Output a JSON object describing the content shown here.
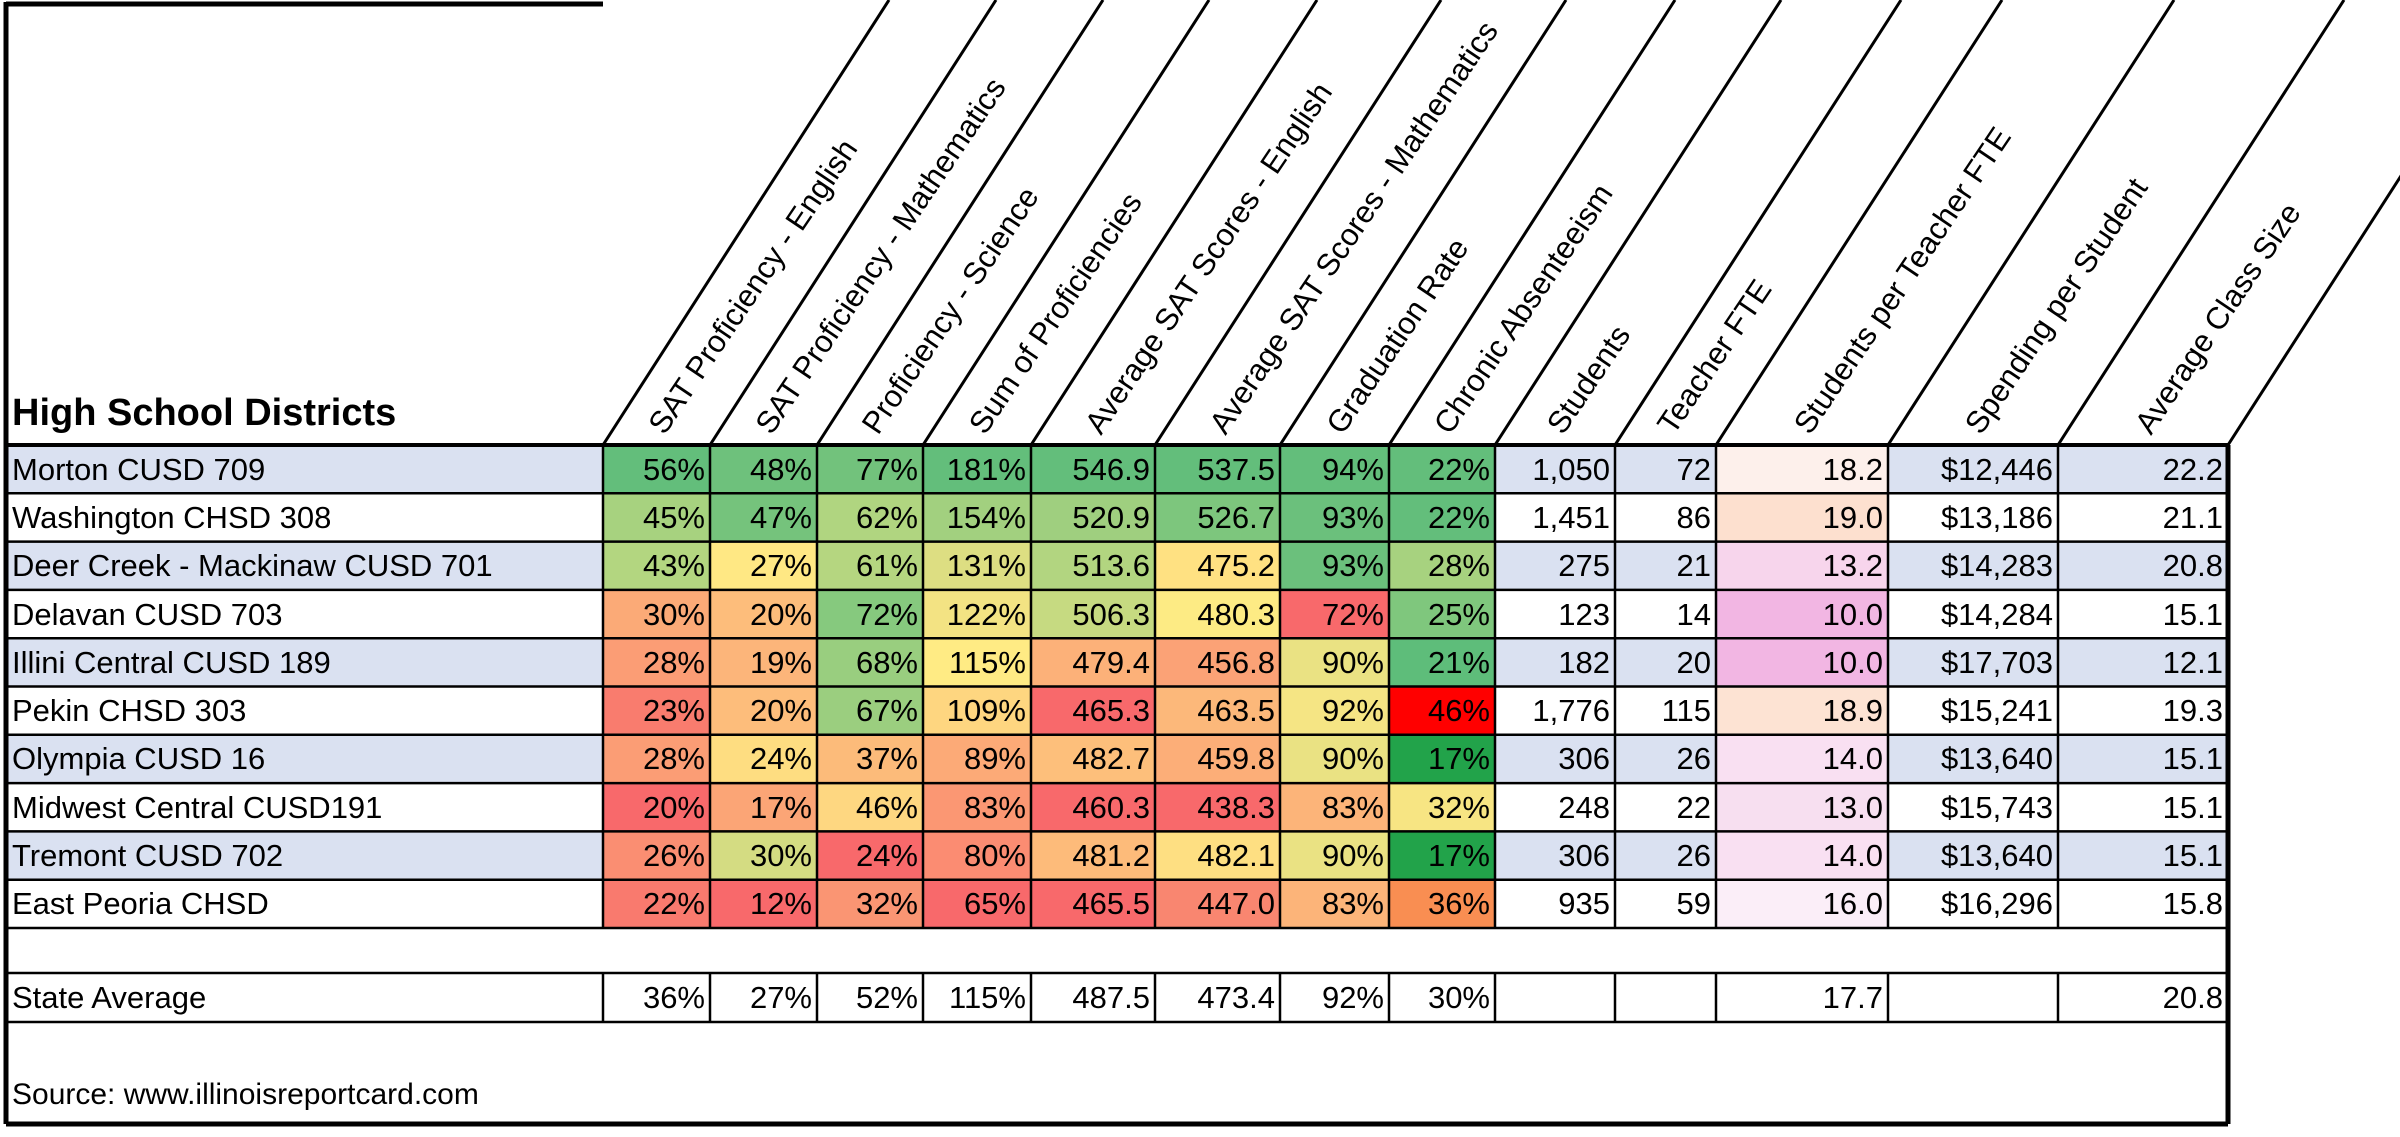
{
  "table": {
    "title": "High School Districts",
    "columns": [
      "SAT Proficiency - English",
      "SAT Proficiency - Mathematics",
      "Proficiency - Science",
      "Sum of Proficiencies",
      "Average SAT Scores - English",
      "Average SAT Scores - Mathematics",
      "Graduation Rate",
      "Chronic Absenteeism",
      "Students",
      "Teacher FTE",
      "Students per Teacher FTE",
      "Spending per Student",
      "Average Class Size"
    ],
    "rows": [
      {
        "name": "Morton CUSD 709",
        "cells": [
          "56%",
          "48%",
          "77%",
          "181%",
          "546.9",
          "537.5",
          "94%",
          "22%",
          "1,050",
          "72",
          "18.2",
          "$12,446",
          "22.2"
        ],
        "colors": [
          "#63be7b",
          "#6ec17c",
          "#72c27c",
          "#63be7b",
          "#63be7b",
          "#63be7b",
          "#63be7b",
          "#63be7b",
          "#dae1f1",
          "#dae1f1",
          "#fdf0eb",
          "#dae1f1",
          "#dae1f1"
        ]
      },
      {
        "name": "Washington CHSD 308",
        "cells": [
          "45%",
          "47%",
          "62%",
          "154%",
          "520.9",
          "526.7",
          "93%",
          "22%",
          "1,451",
          "86",
          "19.0",
          "$13,186",
          "21.1"
        ],
        "colors": [
          "#a7d27f",
          "#75c37c",
          "#b0d580",
          "#a2d07f",
          "#9fcf7f",
          "#7dc67d",
          "#6bc07c",
          "#63be7b",
          "#ffffff",
          "#ffffff",
          "#fde0cf",
          "#ffffff",
          "#ffffff"
        ]
      },
      {
        "name": "Deer Creek - Mackinaw CUSD 701",
        "cells": [
          "43%",
          "27%",
          "61%",
          "131%",
          "513.6",
          "475.2",
          "93%",
          "28%",
          "275",
          "21",
          "13.2",
          "$14,283",
          "20.8"
        ],
        "colors": [
          "#b3d680",
          "#ffe884",
          "#b5d680",
          "#ddde82",
          "#b2d580",
          "#ffe182",
          "#6bc07c",
          "#a7d27f",
          "#dae1f1",
          "#dae1f1",
          "#f7d5ec",
          "#dae1f1",
          "#dae1f1"
        ]
      },
      {
        "name": "Delavan CUSD 703",
        "cells": [
          "30%",
          "20%",
          "72%",
          "122%",
          "506.3",
          "480.3",
          "72%",
          "25%",
          "123",
          "14",
          "10.0",
          "$14,284",
          "15.1"
        ],
        "colors": [
          "#fbaa77",
          "#fdbd7b",
          "#86c97e",
          "#f3e383",
          "#c6da81",
          "#fdeb84",
          "#f8696b",
          "#7fc77d",
          "#ffffff",
          "#ffffff",
          "#f2b6e3",
          "#ffffff",
          "#ffffff"
        ]
      },
      {
        "name": "Illini Central CUSD 189",
        "cells": [
          "28%",
          "19%",
          "68%",
          "115%",
          "479.4",
          "456.8",
          "90%",
          "21%",
          "182",
          "20",
          "10.0",
          "$17,703",
          "12.1"
        ],
        "colors": [
          "#fb9d75",
          "#fcb57a",
          "#99ce7f",
          "#ffeb84",
          "#fcb179",
          "#fba276",
          "#eae283",
          "#5ebd7a",
          "#dae1f1",
          "#dae1f1",
          "#f2b6e3",
          "#dae1f1",
          "#dae1f1"
        ]
      },
      {
        "name": "Pekin CHSD 303",
        "cells": [
          "23%",
          "20%",
          "67%",
          "109%",
          "465.3",
          "463.5",
          "92%",
          "46%",
          "1,776",
          "115",
          "18.9",
          "$15,241",
          "19.3"
        ],
        "colors": [
          "#f97c6e",
          "#fdbd7b",
          "#9bce7f",
          "#fed680",
          "#f8696b",
          "#fcb87a",
          "#f5e584",
          "#ff0000",
          "#ffffff",
          "#ffffff",
          "#fde3d3",
          "#ffffff",
          "#ffffff"
        ]
      },
      {
        "name": "Olympia CUSD 16",
        "cells": [
          "28%",
          "24%",
          "37%",
          "89%",
          "482.7",
          "459.8",
          "90%",
          "17%",
          "306",
          "26",
          "14.0",
          "$13,640",
          "15.1"
        ],
        "colors": [
          "#fb9d75",
          "#fedd81",
          "#fcbb7a",
          "#fcaa77",
          "#fdbf7b",
          "#fcae78",
          "#eae283",
          "#22a34a",
          "#dae1f1",
          "#dae1f1",
          "#f9e0f2",
          "#dae1f1",
          "#dae1f1"
        ]
      },
      {
        "name": "Midwest Central CUSD191",
        "cells": [
          "20%",
          "17%",
          "46%",
          "83%",
          "460.3",
          "438.3",
          "83%",
          "32%",
          "248",
          "22",
          "13.0",
          "$15,743",
          "15.1"
        ],
        "colors": [
          "#f8696b",
          "#fba576",
          "#fed781",
          "#fb9773",
          "#f8696b",
          "#f8696b",
          "#fcb479",
          "#f7e583",
          "#ffffff",
          "#ffffff",
          "#f7dff0",
          "#ffffff",
          "#ffffff"
        ]
      },
      {
        "name": "Tremont CUSD 702",
        "cells": [
          "26%",
          "30%",
          "24%",
          "80%",
          "481.2",
          "482.1",
          "90%",
          "17%",
          "306",
          "26",
          "14.0",
          "$13,640",
          "15.1"
        ],
        "colors": [
          "#fa8e72",
          "#d4dc82",
          "#f8696b",
          "#fb8c72",
          "#fdbb7a",
          "#fedf82",
          "#eae283",
          "#22a34a",
          "#dae1f1",
          "#dae1f1",
          "#f9e0f2",
          "#dae1f1",
          "#dae1f1"
        ]
      },
      {
        "name": "East Peoria CHSD",
        "cells": [
          "22%",
          "12%",
          "32%",
          "65%",
          "465.5",
          "447.0",
          "83%",
          "36%",
          "935",
          "59",
          "16.0",
          "$16,296",
          "15.8"
        ],
        "colors": [
          "#f97a6e",
          "#f8696b",
          "#fa9573",
          "#f8696b",
          "#f8696b",
          "#f98670",
          "#fcb479",
          "#f98e52",
          "#ffffff",
          "#ffffff",
          "#fbeef8",
          "#ffffff",
          "#ffffff"
        ]
      }
    ],
    "state_average": {
      "name": "State Average",
      "cells": [
        "36%",
        "27%",
        "52%",
        "115%",
        "487.5",
        "473.4",
        "92%",
        "30%",
        "",
        "",
        "17.7",
        "",
        "20.8"
      ]
    },
    "source": "Source: www.illinoisreportcard.com"
  }
}
